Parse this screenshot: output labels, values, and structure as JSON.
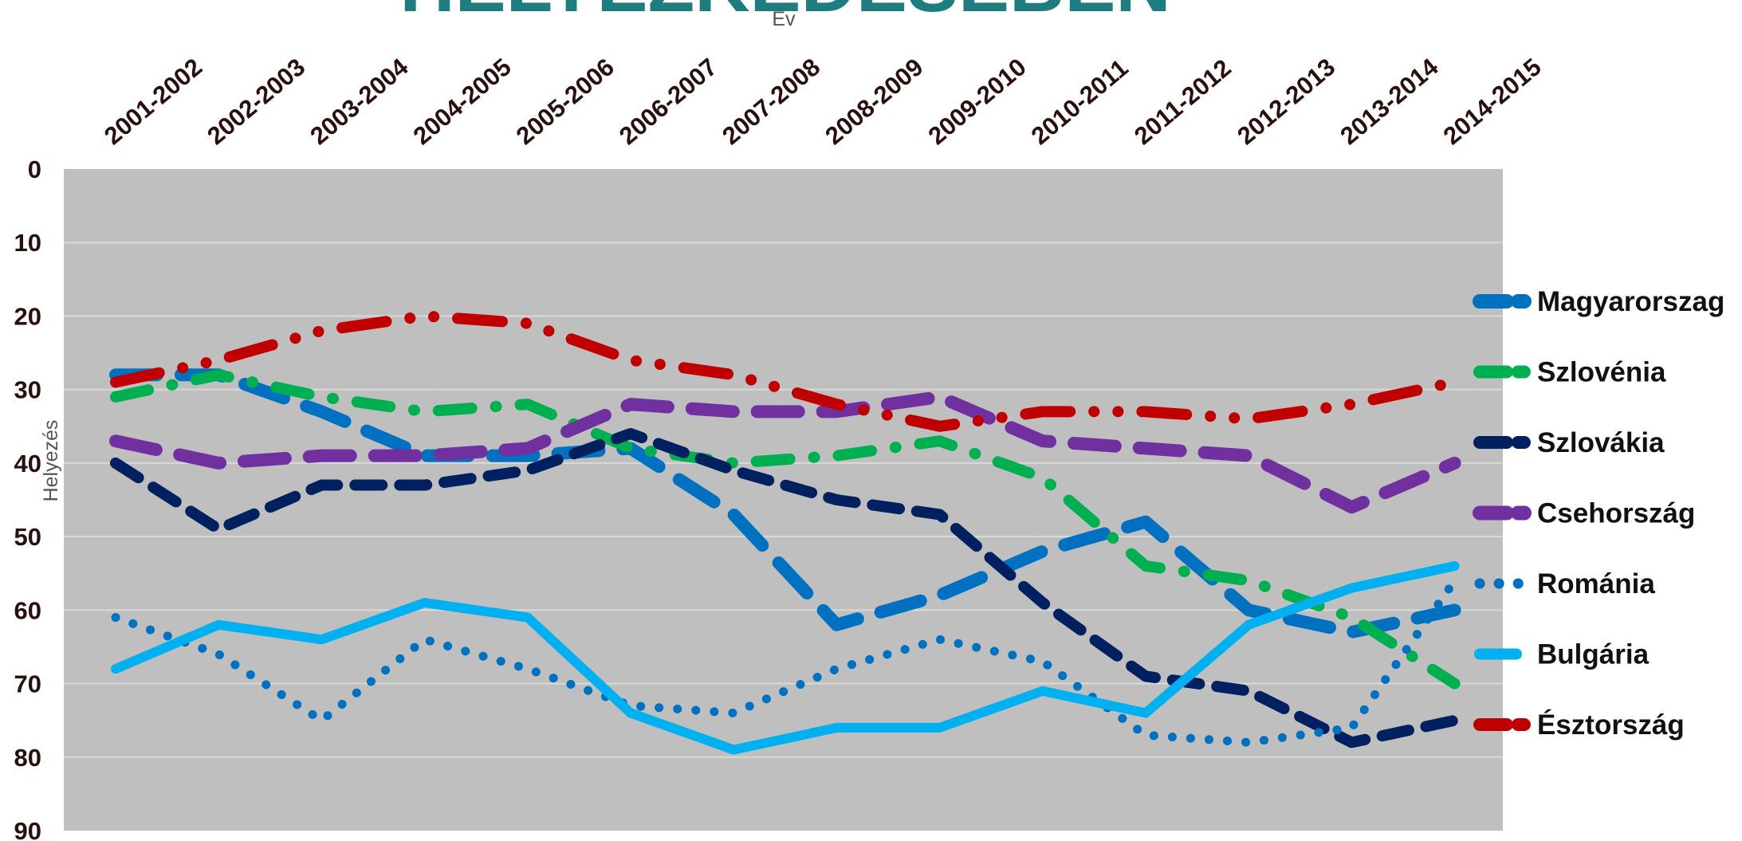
{
  "banner_title": "HELYEZKEDÉSÉBEN",
  "chart_data": {
    "type": "line",
    "title": "",
    "xlabel": "Év",
    "ylabel": "Helyezés",
    "x_axis_position": "top",
    "y_reversed": true,
    "ylim": [
      0,
      90
    ],
    "yticks": [
      0,
      10,
      20,
      30,
      40,
      50,
      60,
      70,
      80,
      90
    ],
    "grid": true,
    "legend_position": "right",
    "categories": [
      "2001-2002",
      "2002-2003",
      "2003-2004",
      "2004-2005",
      "2005-2006",
      "2006-2007",
      "2007-2008",
      "2008-2009",
      "2009-2010",
      "2010-2011",
      "2011-2012",
      "2012-2013",
      "2013-2014",
      "2014-2015"
    ],
    "series": [
      {
        "name": "Magyarorszag",
        "color": "#0070c0",
        "dash": "long-dash",
        "values": [
          28,
          28,
          33,
          39,
          39,
          38,
          47,
          62,
          58,
          52,
          48,
          60,
          63,
          60
        ]
      },
      {
        "name": "Szlovénia",
        "color": "#00b050",
        "dash": "dash-dot",
        "values": [
          31,
          28,
          31,
          33,
          32,
          38,
          40,
          39,
          37,
          42,
          54,
          56,
          61,
          70
        ]
      },
      {
        "name": "Szlovákia",
        "color": "#002060",
        "dash": "dash",
        "values": [
          40,
          49,
          43,
          43,
          41,
          36,
          41,
          45,
          47,
          59,
          69,
          71,
          78,
          75
        ]
      },
      {
        "name": "Csehország",
        "color": "#7030a0",
        "dash": "long-dash",
        "values": [
          37,
          40,
          39,
          39,
          38,
          32,
          33,
          33,
          31,
          37,
          38,
          39,
          46,
          40
        ]
      },
      {
        "name": "Románia",
        "color": "#0070c0",
        "dash": "dot",
        "values": [
          61,
          66,
          75,
          64,
          68,
          73,
          74,
          68,
          64,
          67,
          77,
          78,
          76,
          56
        ]
      },
      {
        "name": "Bulgária",
        "color": "#00b0f0",
        "dash": "solid",
        "values": [
          68,
          62,
          64,
          59,
          61,
          74,
          79,
          76,
          76,
          71,
          74,
          62,
          57,
          54
        ]
      },
      {
        "name": "Észtország",
        "color": "#c00000",
        "dash": "long-dash-dot-dot",
        "values": [
          29,
          26,
          22,
          20,
          21,
          26,
          28,
          32,
          35,
          33,
          33,
          34,
          32,
          29
        ]
      }
    ]
  }
}
